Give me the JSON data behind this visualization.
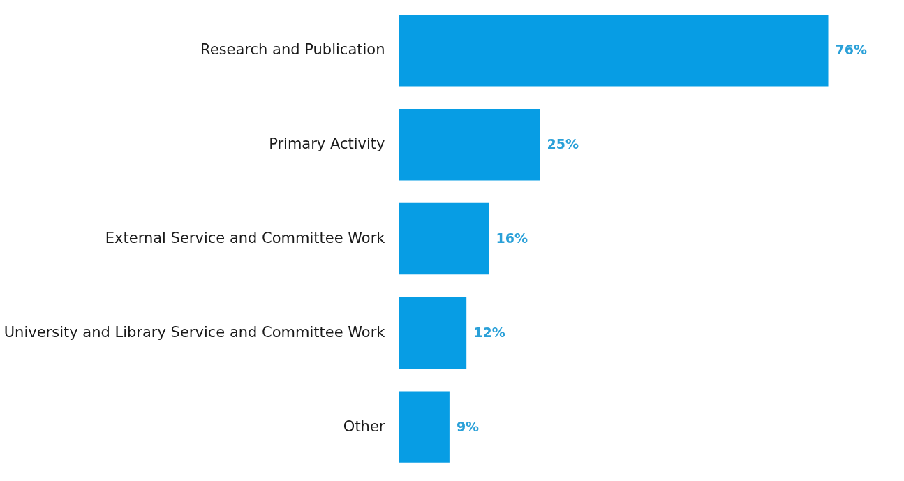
{
  "chart_data": {
    "type": "bar",
    "orientation": "horizontal",
    "categories": [
      "Research and Publication",
      "Primary Activity",
      "External Service and Committee Work",
      "University and Library Service and Committee Work",
      "Other"
    ],
    "values": [
      76,
      25,
      16,
      12,
      9
    ],
    "value_labels": [
      "76%",
      "25%",
      "16%",
      "12%",
      "9%"
    ],
    "color": "#079de4",
    "grid": false
  }
}
